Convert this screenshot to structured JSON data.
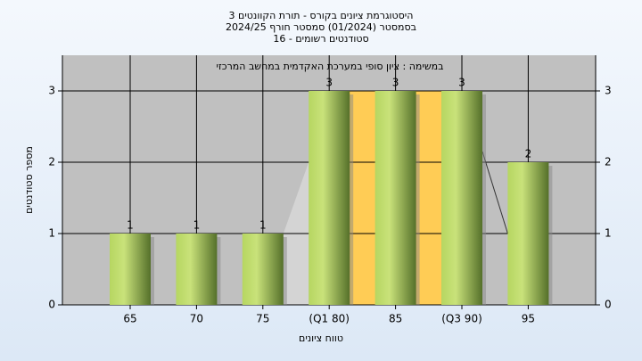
{
  "chart_data": {
    "type": "bar",
    "title": [
      "היסטוגרמת ציונים בקורס - תורת הקוונטים 3",
      "בסמסטר  (01/2024)  סמסטר חורף 2024/25",
      "סטודנטים רשומים - 16"
    ],
    "subtitle": "במשימה : ציון סופי במערכת האקדמית במחשב המרכזי",
    "x_label": "טווח ציונים",
    "y_label": "מספר סטודנטים",
    "categories": [
      "65",
      "70",
      "75",
      "(Q1 80)",
      "85",
      "(Q3 90)",
      "95"
    ],
    "values": [
      1,
      1,
      1,
      3,
      3,
      3,
      2
    ],
    "color": "#8db33c",
    "ylim": [
      0,
      3.5
    ],
    "yticks": [
      0,
      1,
      2,
      3
    ],
    "grid": true
  }
}
